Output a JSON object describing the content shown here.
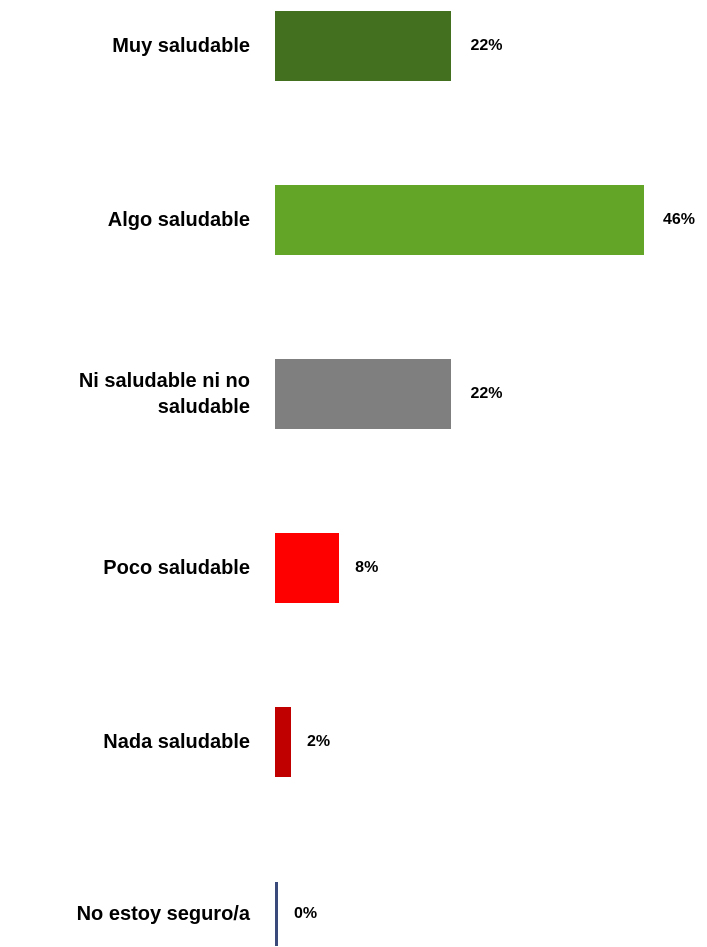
{
  "chart_data": {
    "type": "bar",
    "orientation": "horizontal",
    "categories": [
      "Muy saludable",
      "Algo saludable",
      "Ni saludable ni no saludable",
      "Poco saludable",
      "Nada saludable",
      "No estoy seguro/a"
    ],
    "category_lines": [
      [
        "Muy saludable"
      ],
      [
        "Algo saludable"
      ],
      [
        "Ni saludable ni no",
        "saludable"
      ],
      [
        "Poco saludable"
      ],
      [
        "Nada saludable"
      ],
      [
        "No estoy seguro/a"
      ]
    ],
    "values": [
      22,
      46,
      22,
      8,
      2,
      0
    ],
    "value_labels": [
      "22%",
      "46%",
      "22%",
      "8%",
      "2%",
      "0%"
    ],
    "colors": [
      "#43701f",
      "#62a527",
      "#7f7f7f",
      "#ff0000",
      "#c00000",
      "#3a4a7a"
    ],
    "unit": "%",
    "xlim": [
      0,
      46
    ],
    "title": "",
    "xlabel": "",
    "ylabel": "",
    "grid": false,
    "legend": "none"
  }
}
